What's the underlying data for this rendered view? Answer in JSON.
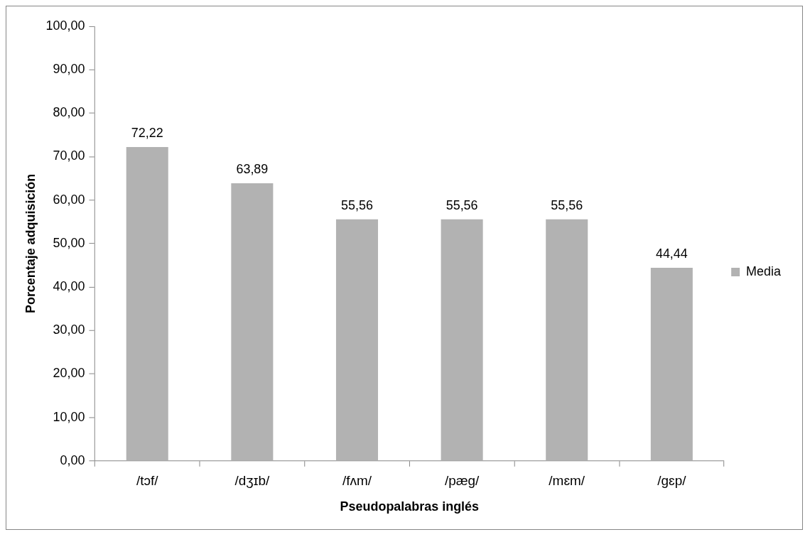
{
  "chart_data": {
    "type": "bar",
    "xlabel": "Pseudopalabras inglés",
    "ylabel": "Porcentaje adquisición",
    "categories": [
      "/tɔf/",
      "/dʒɪb/",
      "/fʌm/",
      "/pæg/",
      "/mɛm/",
      "/gɛp/"
    ],
    "series": [
      {
        "name": "Media",
        "color": "#b2b2b2",
        "values": [
          72.22,
          63.89,
          55.56,
          55.56,
          55.56,
          44.44
        ],
        "value_labels": [
          "72,22",
          "63,89",
          "55,56",
          "55,56",
          "55,56",
          "44,44"
        ]
      }
    ],
    "ylim": [
      0,
      100
    ],
    "yticks": [
      {
        "value": 0,
        "label": "0,00"
      },
      {
        "value": 10,
        "label": "10,00"
      },
      {
        "value": 20,
        "label": "20,00"
      },
      {
        "value": 30,
        "label": "30,00"
      },
      {
        "value": 40,
        "label": "40,00"
      },
      {
        "value": 50,
        "label": "50,00"
      },
      {
        "value": 60,
        "label": "60,00"
      },
      {
        "value": 70,
        "label": "70,00"
      },
      {
        "value": 80,
        "label": "80,00"
      },
      {
        "value": 90,
        "label": "90,00"
      },
      {
        "value": 100,
        "label": "100,00"
      }
    ],
    "grid": false,
    "legend": "right"
  }
}
